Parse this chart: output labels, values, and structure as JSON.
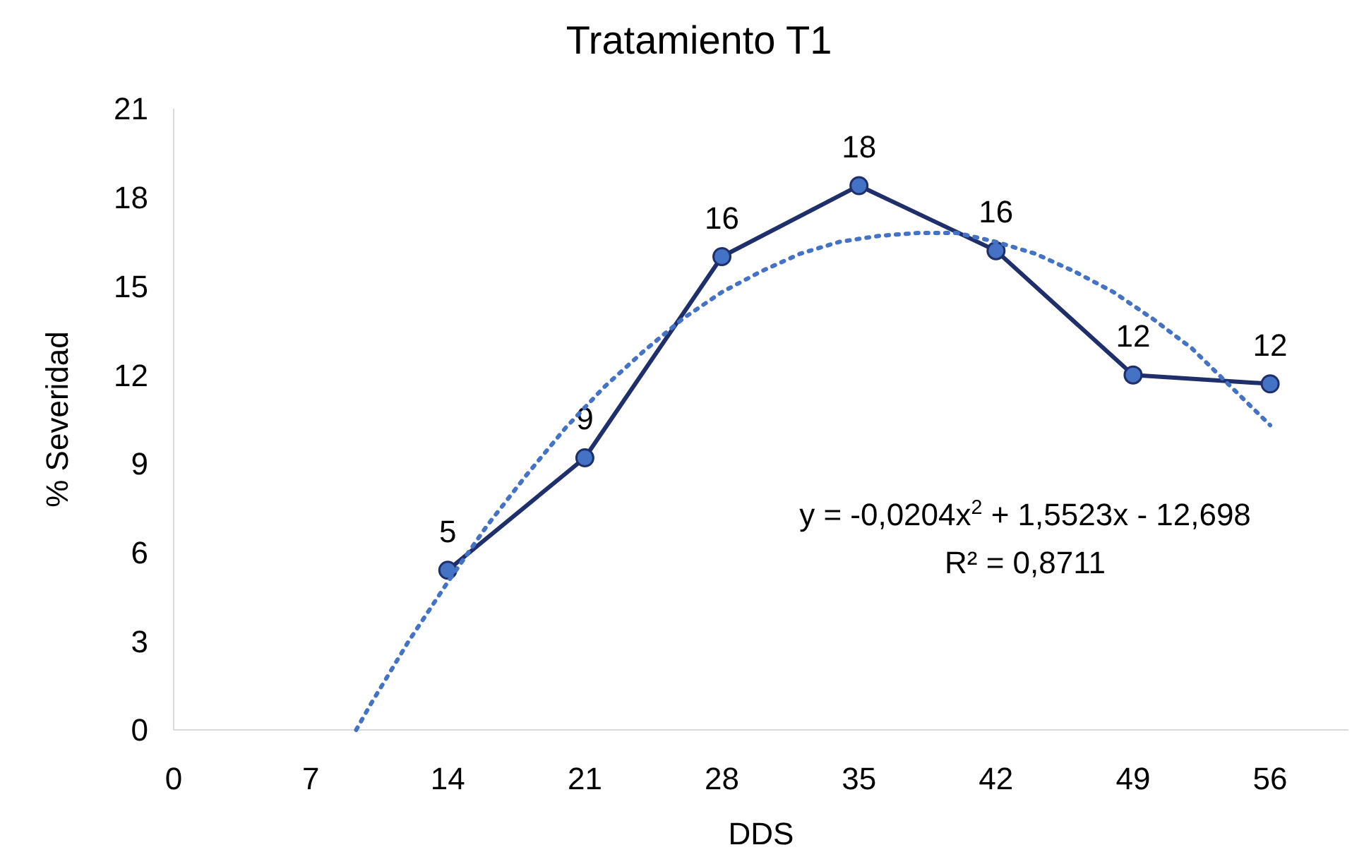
{
  "chart_data": {
    "type": "line",
    "title": "Tratamiento T1",
    "xlabel": "DDS",
    "ylabel": "% Severidad",
    "x": [
      14,
      21,
      28,
      35,
      42,
      49,
      56
    ],
    "xlim": [
      0,
      60
    ],
    "xticks": [
      0,
      7,
      14,
      21,
      28,
      35,
      42,
      49,
      56
    ],
    "ylim": [
      0,
      21
    ],
    "yticks": [
      0,
      3,
      6,
      9,
      12,
      15,
      18,
      21
    ],
    "grid": false,
    "series": [
      {
        "type": "line",
        "color": "#1f2f6b",
        "marker": "circle",
        "line_style": "solid",
        "values": [
          5.4,
          9.2,
          16.0,
          18.4,
          16.2,
          12.0,
          11.7
        ],
        "value_labels": [
          "5",
          "9",
          "16",
          "18",
          "16",
          "12",
          "12"
        ]
      },
      {
        "type": "line",
        "color": "#4472c4",
        "marker": "none",
        "line_style": "dotted",
        "x": [
          9.32,
          10,
          12,
          14,
          16,
          18,
          20,
          22,
          24,
          26,
          28,
          30,
          32,
          34,
          36,
          38,
          40,
          42,
          44,
          46,
          48,
          50,
          52,
          54,
          56
        ],
        "values": [
          0,
          0.8,
          3.0,
          5.0,
          6.9,
          8.6,
          10.2,
          11.6,
          12.8,
          13.9,
          14.8,
          15.5,
          16.1,
          16.5,
          16.7,
          16.8,
          16.8,
          16.5,
          16.1,
          15.5,
          14.8,
          13.9,
          12.9,
          11.6,
          10.3
        ]
      }
    ],
    "annotations": [
      "y = -0,0204x$^{2}$ + 1,5523x - 12,698",
      "R² = 0,8711"
    ]
  }
}
